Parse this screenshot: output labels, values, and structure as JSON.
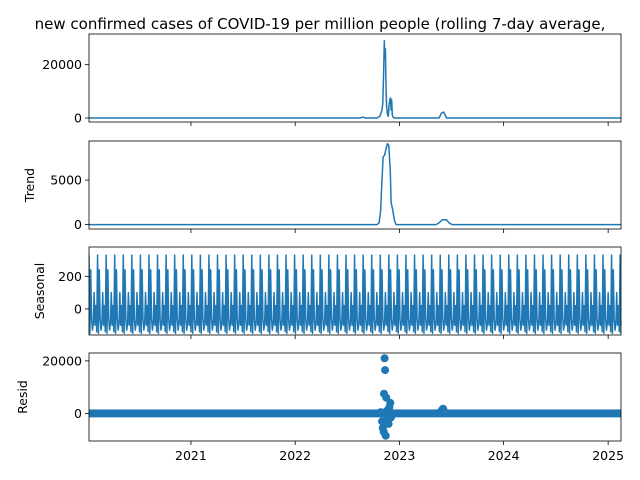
{
  "figure": {
    "title": "new confirmed cases of COVID-19 per million people (rolling 7-day average,",
    "x_tick_labels": [
      "2021",
      "2022",
      "2023",
      "2024",
      "2025"
    ]
  },
  "colors": {
    "series": "#1f77b4",
    "axes": "#000000",
    "background": "#ffffff"
  },
  "chart_data": [
    {
      "type": "line",
      "panel": "observed",
      "ylabel": "",
      "ylim": [
        -1500,
        31500
      ],
      "yticks": [
        0,
        20000
      ],
      "ytick_labels": [
        "0",
        "20000"
      ],
      "x_range": [
        "2020-01-10",
        "2025-02-15"
      ],
      "series": [
        {
          "x": [
            "2020-01-10",
            "2022-08-15",
            "2022-08-25",
            "2022-09-05",
            "2022-10-15",
            "2022-10-25",
            "2022-11-01",
            "2022-11-04",
            "2022-11-07",
            "2022-11-09",
            "2022-11-11",
            "2022-11-13",
            "2022-11-15",
            "2022-11-17",
            "2022-11-20",
            "2022-11-23",
            "2022-11-26",
            "2022-11-29",
            "2022-12-01",
            "2022-12-03",
            "2022-12-05",
            "2022-12-07",
            "2022-12-10",
            "2022-12-15",
            "2022-12-20",
            "2023-05-20",
            "2023-05-28",
            "2023-06-05",
            "2023-06-10",
            "2023-06-15",
            "2023-06-25",
            "2025-02-15"
          ],
          "y": [
            0,
            0,
            300,
            0,
            0,
            700,
            3000,
            5500,
            18000,
            29000,
            22000,
            26000,
            12000,
            4500,
            1500,
            600,
            5000,
            7200,
            7500,
            3000,
            6800,
            1200,
            300,
            0,
            0,
            0,
            1800,
            2200,
            1200,
            0,
            0,
            0
          ]
        }
      ]
    },
    {
      "type": "line",
      "panel": "trend",
      "ylabel": "Trend",
      "ylim": [
        -500,
        9400
      ],
      "yticks": [
        0,
        5000
      ],
      "ytick_labels": [
        "0",
        "5000"
      ],
      "x_range": [
        "2020-01-10",
        "2025-02-15"
      ],
      "series": [
        {
          "x": [
            "2020-01-10",
            "2022-10-15",
            "2022-10-22",
            "2022-10-27",
            "2022-11-01",
            "2022-11-05",
            "2022-11-10",
            "2022-11-15",
            "2022-11-20",
            "2022-11-25",
            "2022-11-30",
            "2022-12-03",
            "2022-12-08",
            "2022-12-15",
            "2022-12-20",
            "2023-05-10",
            "2023-05-20",
            "2023-06-01",
            "2023-06-15",
            "2023-06-25",
            "2023-07-05",
            "2025-02-15"
          ],
          "y": [
            0,
            0,
            200,
            1500,
            5000,
            7600,
            7800,
            8500,
            9100,
            8900,
            6000,
            2500,
            1700,
            400,
            0,
            0,
            200,
            550,
            550,
            150,
            0,
            0
          ]
        }
      ]
    },
    {
      "type": "line",
      "panel": "seasonal",
      "ylabel": "Seasonal",
      "ylim": [
        -160,
        380
      ],
      "yticks": [
        0,
        200
      ],
      "ytick_labels": [
        "0",
        "200"
      ],
      "x_range": [
        "2020-01-10",
        "2025-02-15"
      ],
      "period_days": 30,
      "pattern": [
        330,
        -150,
        240,
        -60,
        -130,
        -90,
        100,
        -100,
        20,
        -140
      ],
      "series": []
    },
    {
      "type": "scatter",
      "panel": "resid",
      "ylabel": "Resid",
      "ylim": [
        -10500,
        23000
      ],
      "yticks": [
        0,
        20000
      ],
      "ytick_labels": [
        "0",
        "20000"
      ],
      "x_range": [
        "2020-01-10",
        "2025-02-15"
      ],
      "series": [
        {
          "baseline": "0 for all dates outside listed points",
          "x": [
            "2022-10-28",
            "2022-11-01",
            "2022-11-04",
            "2022-11-07",
            "2022-11-08",
            "2022-11-10",
            "2022-11-12",
            "2022-11-14",
            "2022-11-16",
            "2022-11-18",
            "2022-11-21",
            "2022-11-24",
            "2022-11-27",
            "2022-11-30",
            "2022-12-03",
            "2023-05-29",
            "2023-06-03",
            "2023-06-07"
          ],
          "y": [
            500,
            -3000,
            -5500,
            -7000,
            7500,
            21000,
            16500,
            -8500,
            6000,
            1000,
            -2000,
            -4000,
            2500,
            4000,
            -1500,
            1200,
            1800,
            800
          ]
        }
      ]
    }
  ]
}
